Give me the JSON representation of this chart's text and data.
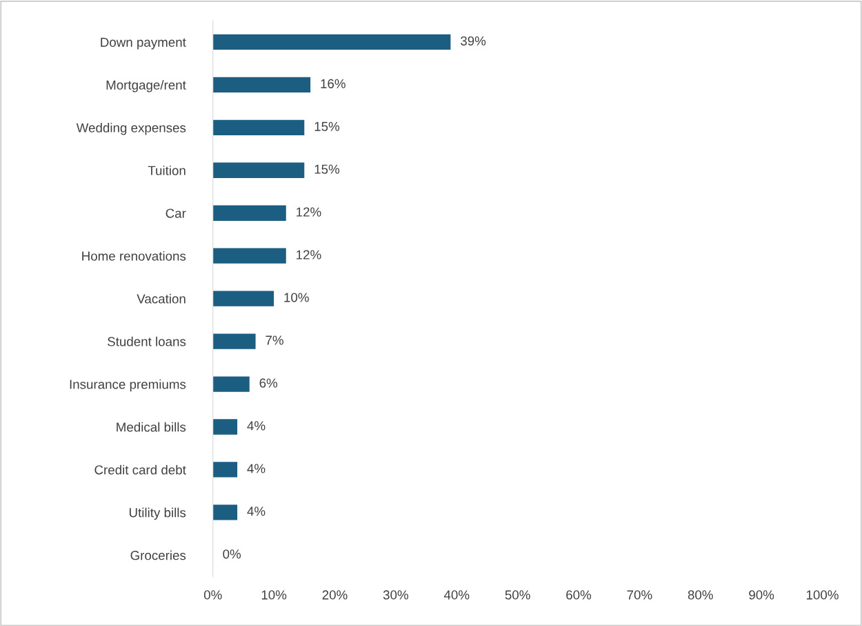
{
  "chart_data": {
    "type": "bar",
    "orientation": "horizontal",
    "categories": [
      "Down payment",
      "Mortgage/rent",
      "Wedding expenses",
      "Tuition",
      "Car",
      "Home renovations",
      "Vacation",
      "Student loans",
      "Insurance premiums",
      "Medical bills",
      "Credit card debt",
      "Utility bills",
      "Groceries"
    ],
    "values": [
      39,
      16,
      15,
      15,
      12,
      12,
      10,
      7,
      6,
      4,
      4,
      4,
      0
    ],
    "color": "#1b5e82",
    "value_labels": [
      "39%",
      "16%",
      "15%",
      "15%",
      "12%",
      "12%",
      "10%",
      "7%",
      "6%",
      "4%",
      "4%",
      "4%",
      "0%"
    ],
    "xlim": [
      0,
      100
    ],
    "xticks": [
      {
        "value": 0,
        "label": "0%"
      },
      {
        "value": 10,
        "label": "10%"
      },
      {
        "value": 20,
        "label": "20%"
      },
      {
        "value": 30,
        "label": "30%"
      },
      {
        "value": 40,
        "label": "40%"
      },
      {
        "value": 50,
        "label": "50%"
      },
      {
        "value": 60,
        "label": "60%"
      },
      {
        "value": 70,
        "label": "70%"
      },
      {
        "value": 80,
        "label": "80%"
      },
      {
        "value": 90,
        "label": "90%"
      },
      {
        "value": 100,
        "label": "100%"
      }
    ],
    "grid": false,
    "legend": false
  }
}
